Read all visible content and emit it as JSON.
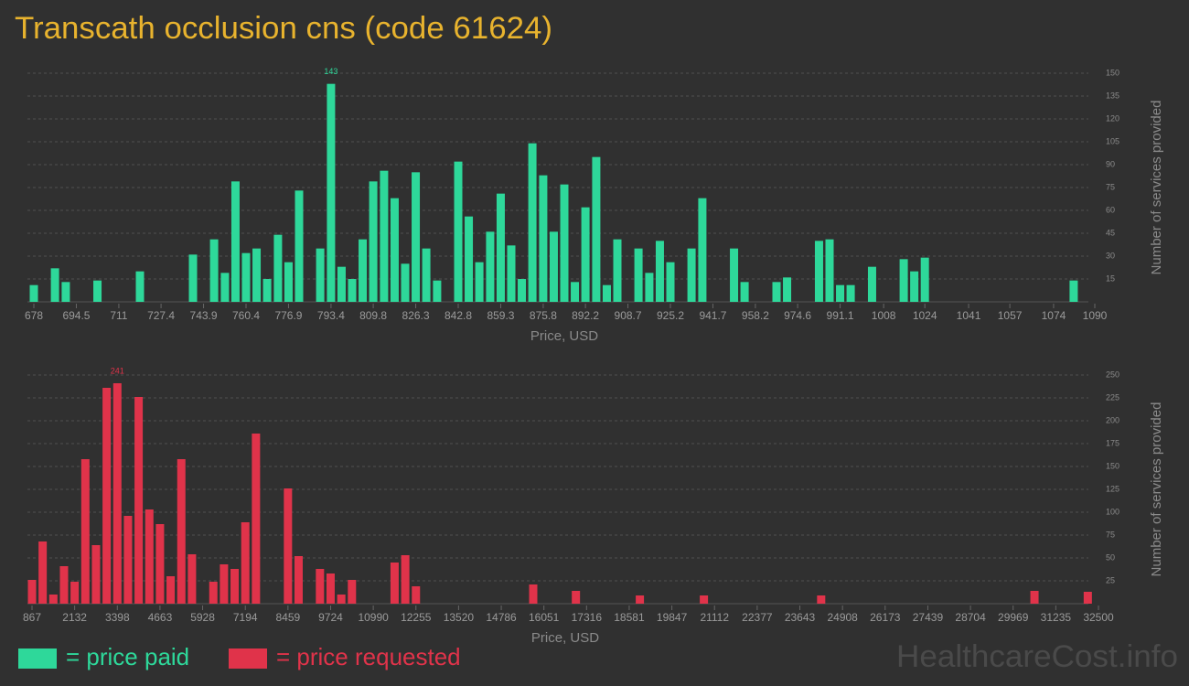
{
  "title": "Transcath occlusion cns (code 61624)",
  "watermark": "HealthcareCost.info",
  "chart_data": [
    {
      "type": "bar",
      "x_label": "Price, USD",
      "y_label": "Number of services provided",
      "x": [
        678,
        686.2,
        690.4,
        702.7,
        719.2,
        739.8,
        748,
        752.2,
        756.3,
        760.4,
        764.5,
        768.6,
        772.8,
        776.9,
        781,
        789.2,
        793.4,
        797.5,
        801.6,
        805.7,
        809.8,
        814,
        818.1,
        822.2,
        826.3,
        830.4,
        834.6,
        842.8,
        846.9,
        851,
        855.2,
        859.3,
        863.4,
        867.5,
        871.6,
        875.8,
        879.9,
        884,
        888.1,
        892.2,
        896.4,
        900.5,
        904.6,
        912.8,
        917,
        921.1,
        925.2,
        933.4,
        937.6,
        949.9,
        954,
        966.4,
        970.5,
        982.9,
        987,
        991.1,
        995.2,
        1003.5,
        1015.8,
        1019.9,
        1024,
        1081.8
      ],
      "series": [
        {
          "name": "= price paid",
          "color": "#2ed89a",
          "values": [
            11,
            22,
            13,
            14,
            20,
            31,
            41,
            19,
            79,
            32,
            35,
            15,
            44,
            26,
            73,
            35,
            143,
            23,
            15,
            41,
            79,
            86,
            68,
            25,
            85,
            35,
            14,
            92,
            56,
            26,
            46,
            71,
            37,
            15,
            104,
            83,
            46,
            77,
            13,
            62,
            95,
            11,
            41,
            35,
            19,
            40,
            26,
            35,
            68,
            35,
            13,
            13,
            16,
            40,
            41,
            11,
            11,
            23,
            28,
            20,
            29,
            14
          ]
        }
      ],
      "xlim": [
        678,
        1090
      ],
      "xticks": [
        678,
        694.5,
        711,
        727.4,
        743.9,
        760.4,
        776.9,
        793.4,
        809.8,
        826.3,
        842.8,
        859.3,
        875.8,
        892.2,
        908.7,
        925.2,
        941.7,
        958.2,
        974.6,
        991.1,
        1008,
        1024,
        1041,
        1057,
        1074,
        1090
      ],
      "ylim": [
        0,
        150
      ],
      "yticks": [
        15,
        30,
        45,
        60,
        75,
        90,
        105,
        120,
        135,
        150
      ],
      "grid": true
    },
    {
      "type": "bar",
      "x_label": "Price, USD",
      "y_label": "Number of services provided",
      "x": [
        867,
        1183,
        1500,
        1816,
        2132,
        2449,
        2765,
        3081,
        3398,
        3714,
        4030,
        4347,
        4663,
        4979,
        5296,
        5612,
        6245,
        6561,
        6877,
        7194,
        7510,
        8459,
        8775,
        9408,
        9724,
        10041,
        10357,
        11622,
        11939,
        12255,
        15734,
        17000,
        18897,
        20796,
        24275,
        30602,
        32184
      ],
      "series": [
        {
          "name": "= price requested",
          "color": "#e0334a",
          "values": [
            26,
            68,
            10,
            41,
            24,
            158,
            64,
            236,
            241,
            96,
            226,
            103,
            87,
            30,
            158,
            54,
            24,
            43,
            38,
            89,
            186,
            126,
            52,
            38,
            33,
            10,
            26,
            45,
            53,
            19,
            21,
            14,
            9,
            9,
            9,
            14,
            13
          ]
        }
      ],
      "xlim": [
        867,
        32500
      ],
      "xticks": [
        867,
        2132,
        3398,
        4663,
        5928,
        7194,
        8459,
        9724,
        10990,
        12255,
        13520,
        14786,
        16051,
        17316,
        18581,
        19847,
        21112,
        22377,
        23643,
        24908,
        26173,
        27439,
        28704,
        29969,
        31235,
        32500
      ],
      "ylim": [
        0,
        250
      ],
      "yticks": [
        25,
        50,
        75,
        100,
        125,
        150,
        175,
        200,
        225,
        250
      ],
      "grid": true
    }
  ]
}
